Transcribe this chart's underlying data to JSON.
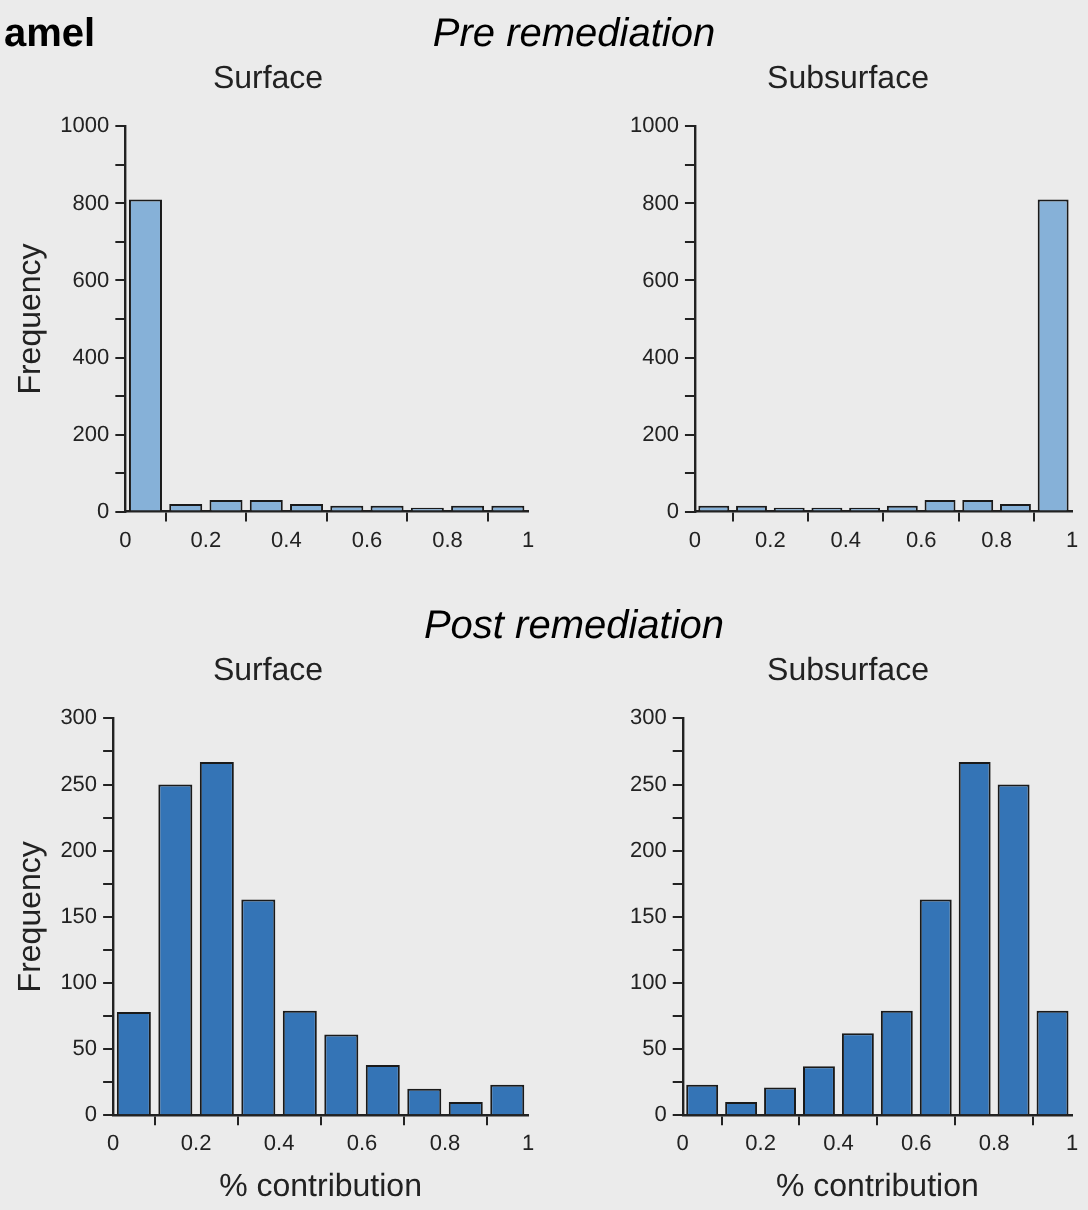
{
  "chart_data": [
    {
      "type": "histogram",
      "title": "Surface",
      "ylabel": "Frequency",
      "annotations": [
        "amel",
        "Pre remediation"
      ],
      "bins": [
        0,
        0.1,
        0.2,
        0.3,
        0.4,
        0.5,
        0.6,
        0.7,
        0.8,
        0.9,
        1
      ],
      "values": [
        810,
        20,
        30,
        30,
        20,
        15,
        15,
        10,
        15,
        15
      ],
      "color": "#86b1d8",
      "xlim": [
        0,
        1
      ],
      "xticks": [
        0,
        0.2,
        0.4,
        0.6,
        0.8,
        1
      ],
      "ylim": [
        0,
        1000
      ],
      "yticks": [
        0,
        {
          "value": 100,
          "label": null
        },
        200,
        {
          "value": 300,
          "label": null
        },
        400,
        {
          "value": 500,
          "label": null
        },
        600,
        {
          "value": 700,
          "label": null
        },
        800,
        {
          "value": 900,
          "label": null
        },
        1000
      ]
    },
    {
      "type": "histogram",
      "title": "Subsurface",
      "bins": [
        0,
        0.1,
        0.2,
        0.3,
        0.4,
        0.5,
        0.6,
        0.7,
        0.8,
        0.9,
        1
      ],
      "values": [
        15,
        15,
        10,
        10,
        10,
        15,
        30,
        30,
        20,
        810
      ],
      "color": "#86b1d8",
      "xlim": [
        0,
        1
      ],
      "xticks": [
        0,
        0.2,
        0.4,
        0.6,
        0.8,
        1
      ],
      "ylim": [
        0,
        1000
      ],
      "yticks": [
        0,
        {
          "value": 100,
          "label": null
        },
        200,
        {
          "value": 300,
          "label": null
        },
        400,
        {
          "value": 500,
          "label": null
        },
        600,
        {
          "value": 700,
          "label": null
        },
        800,
        {
          "value": 900,
          "label": null
        },
        1000
      ]
    },
    {
      "type": "histogram",
      "title": "Surface",
      "xlabel": "% contribution",
      "ylabel": "Frequency",
      "annotations": [
        "Post remediation"
      ],
      "bins": [
        0,
        0.1,
        0.2,
        0.3,
        0.4,
        0.5,
        0.6,
        0.7,
        0.8,
        0.9,
        1
      ],
      "values": [
        78,
        250,
        267,
        163,
        79,
        61,
        38,
        20,
        10,
        23
      ],
      "color": "#3474b6",
      "xlim": [
        0,
        1
      ],
      "xticks": [
        0,
        0.2,
        0.4,
        0.6,
        0.8,
        1
      ],
      "ylim": [
        0,
        300
      ],
      "yticks": [
        0,
        {
          "value": 25,
          "label": null
        },
        50,
        {
          "value": 75,
          "label": null
        },
        100,
        {
          "value": 125,
          "label": null
        },
        150,
        {
          "value": 175,
          "label": null
        },
        200,
        {
          "value": 225,
          "label": null
        },
        250,
        {
          "value": 275,
          "label": null
        },
        300
      ]
    },
    {
      "type": "histogram",
      "title": "Subsurface",
      "xlabel": "% contribution",
      "bins": [
        0,
        0.1,
        0.2,
        0.3,
        0.4,
        0.5,
        0.6,
        0.7,
        0.8,
        0.9,
        1
      ],
      "values": [
        23,
        10,
        21,
        37,
        62,
        79,
        163,
        267,
        250,
        79
      ],
      "color": "#3474b6",
      "xlim": [
        0,
        1
      ],
      "xticks": [
        0,
        0.2,
        0.4,
        0.6,
        0.8,
        1
      ],
      "ylim": [
        0,
        300
      ],
      "yticks": [
        0,
        {
          "value": 25,
          "label": null
        },
        50,
        {
          "value": 75,
          "label": null
        },
        100,
        {
          "value": 125,
          "label": null
        },
        150,
        {
          "value": 175,
          "label": null
        },
        200,
        {
          "value": 225,
          "label": null
        },
        250,
        {
          "value": 275,
          "label": null
        },
        300
      ]
    }
  ]
}
